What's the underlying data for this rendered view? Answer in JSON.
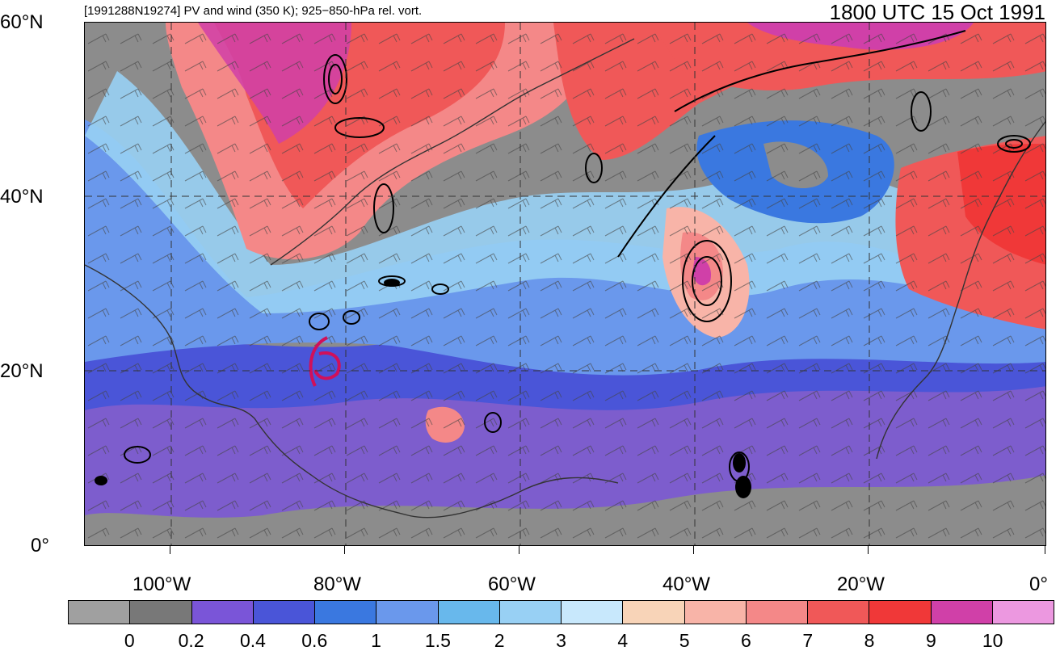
{
  "header": {
    "left_title": "[1991288N19274] PV and wind (350 K); 925−850-hPa rel. vort.",
    "right_title": "1800 UTC 15 Oct 1991"
  },
  "axes": {
    "y_labels": [
      "60°N",
      "40°N",
      "20°N",
      "0°"
    ],
    "x_labels": [
      "100°W",
      "80°W",
      "60°W",
      "40°W",
      "20°W",
      "0°"
    ]
  },
  "colorbar": {
    "labels": [
      "0",
      "0.2",
      "0.4",
      "0.6",
      "1",
      "1.5",
      "2",
      "3",
      "4",
      "5",
      "6",
      "7",
      "8",
      "9",
      "10"
    ],
    "colors": [
      "#a0a0a0",
      "#787878",
      "#7a55d8",
      "#4a55d8",
      "#3a78e0",
      "#6a98ec",
      "#68b8ec",
      "#98d0f4",
      "#c8e8fc",
      "#f8d4b8",
      "#f8b4a8",
      "#f48888",
      "#f05858",
      "#f03838",
      "#d040a8",
      "#ec98e0"
    ]
  },
  "map": {
    "region": "North Atlantic, 0°–60°N, ~110°W–0°",
    "gridlines": "dashed every 20°",
    "field": "potential vorticity shading with wind barbs and black vorticity contours",
    "storm_marker_color": "#d0105a"
  }
}
